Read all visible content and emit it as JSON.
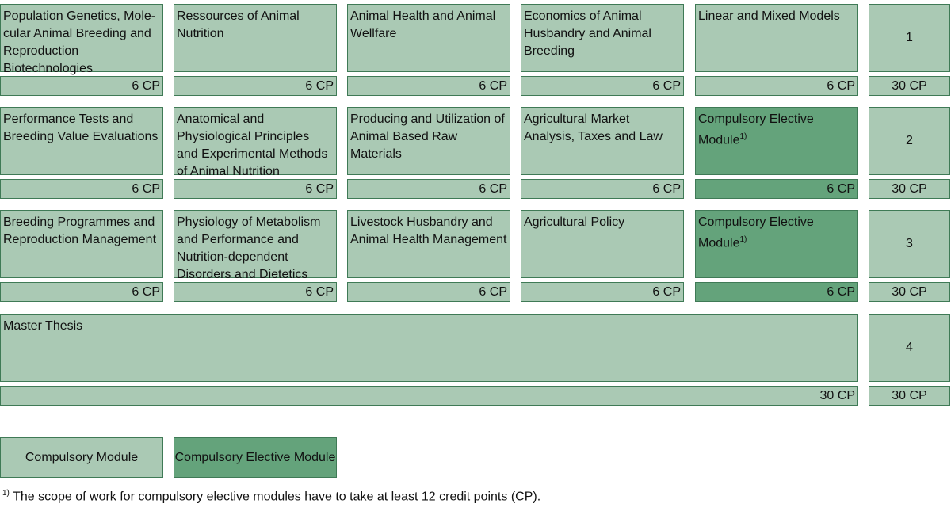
{
  "rows": [
    {
      "modules": [
        {
          "title": "Population Genetics, Mole-cular Animal Breeding and Reproduction Biotechnologies",
          "cp": "6 CP",
          "type": "compulsory"
        },
        {
          "title": "Ressources of Animal Nutrition",
          "cp": "6 CP",
          "type": "compulsory"
        },
        {
          "title": "Animal Health and Animal Wellfare",
          "cp": "6 CP",
          "type": "compulsory"
        },
        {
          "title": "Economics of Animal Husbandry and Animal Breeding",
          "cp": "6 CP",
          "type": "compulsory"
        },
        {
          "title": "Linear and Mixed Models",
          "cp": "6 CP",
          "type": "compulsory"
        }
      ],
      "semester": "1",
      "total_cp": "30 CP"
    },
    {
      "modules": [
        {
          "title": "Performance Tests and Breeding Value Evaluations",
          "cp": "6 CP",
          "type": "compulsory"
        },
        {
          "title": "Anatomical and Physiological Principles and Experimental Methods of Animal Nutrition",
          "cp": "6 CP",
          "type": "compulsory"
        },
        {
          "title": "Producing and Utilization of Animal Based Raw Materials",
          "cp": "6 CP",
          "type": "compulsory"
        },
        {
          "title": "Agricultural Market Analysis, Taxes and Law",
          "cp": "6 CP",
          "type": "compulsory"
        },
        {
          "title": "Compulsory Elective Module",
          "sup": "1)",
          "cp": "6 CP",
          "type": "elective"
        }
      ],
      "semester": "2",
      "total_cp": "30 CP"
    },
    {
      "modules": [
        {
          "title": "Breeding Programmes and Reproduction Management",
          "cp": "6 CP",
          "type": "compulsory"
        },
        {
          "title": "Physiology of Metabolism and Performance and Nutrition-dependent Disorders and Dietetics",
          "cp": "6 CP",
          "type": "compulsory"
        },
        {
          "title": "Livestock Husbandry and Animal Health Management",
          "cp": "6 CP",
          "type": "compulsory"
        },
        {
          "title": "Agricultural Policy",
          "cp": "6 CP",
          "type": "compulsory"
        },
        {
          "title": "Compulsory Elective Module",
          "sup": "1)",
          "cp": "6 CP",
          "type": "elective"
        }
      ],
      "semester": "3",
      "total_cp": "30 CP"
    }
  ],
  "thesis": {
    "title": "Master Thesis",
    "cp": "30 CP",
    "semester": "4",
    "total_cp": "30 CP"
  },
  "legend": {
    "compulsory": "Compulsory Module",
    "elective": "Compulsory Elective Module"
  },
  "footnote": {
    "mark": "1)",
    "text": " The scope of work for compulsory elective modules have to take at least 12 credit points (CP)."
  },
  "colors": {
    "compulsory": "#aac9b4",
    "elective": "#64a37b",
    "border": "#3f7a56"
  }
}
